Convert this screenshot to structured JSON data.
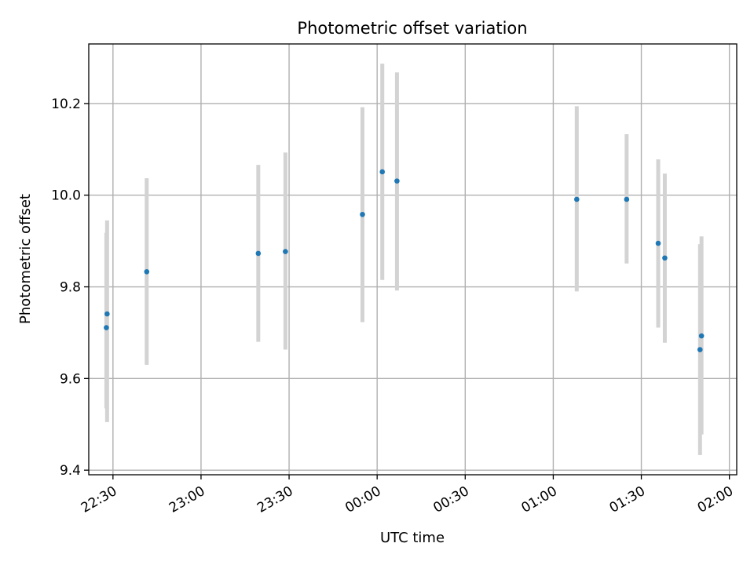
{
  "chart_data": {
    "type": "scatter",
    "title": "Photometric offset variation",
    "xlabel": "UTC time",
    "ylabel": "Photometric offset",
    "xlim": [
      "22:21:45",
      "02:02:30"
    ],
    "ylim": [
      9.39,
      10.33
    ],
    "grid": true,
    "colors": {
      "point": "#1f77b4",
      "error_bar": "#d3d3d3",
      "grid": "#b0b0b0"
    },
    "x_ticks": [
      "22:30",
      "23:00",
      "23:30",
      "00:00",
      "00:30",
      "01:00",
      "01:30",
      "02:00"
    ],
    "y_ticks": [
      "9.4",
      "9.6",
      "9.8",
      "10.0",
      "10.2"
    ],
    "points": [
      {
        "x": "22:27:45",
        "y": 9.711,
        "yerr_low": 9.535,
        "yerr_high": 9.918
      },
      {
        "x": "22:28:00",
        "y": 9.741,
        "yerr_low": 9.505,
        "yerr_high": 9.945
      },
      {
        "x": "22:41:30",
        "y": 9.833,
        "yerr_low": 9.63,
        "yerr_high": 10.037
      },
      {
        "x": "23:19:30",
        "y": 9.873,
        "yerr_low": 9.68,
        "yerr_high": 10.066
      },
      {
        "x": "23:28:45",
        "y": 9.877,
        "yerr_low": 9.663,
        "yerr_high": 10.093
      },
      {
        "x": "23:55:00",
        "y": 9.958,
        "yerr_low": 9.723,
        "yerr_high": 10.192
      },
      {
        "x": "00:01:45",
        "y": 10.051,
        "yerr_low": 9.815,
        "yerr_high": 10.287
      },
      {
        "x": "00:06:45",
        "y": 10.031,
        "yerr_low": 9.792,
        "yerr_high": 10.268
      },
      {
        "x": "01:08:00",
        "y": 9.991,
        "yerr_low": 9.79,
        "yerr_high": 10.194
      },
      {
        "x": "01:25:00",
        "y": 9.991,
        "yerr_low": 9.851,
        "yerr_high": 10.133
      },
      {
        "x": "01:35:45",
        "y": 9.895,
        "yerr_low": 9.711,
        "yerr_high": 10.078
      },
      {
        "x": "01:38:00",
        "y": 9.863,
        "yerr_low": 9.678,
        "yerr_high": 10.047
      },
      {
        "x": "01:50:00",
        "y": 9.663,
        "yerr_low": 9.433,
        "yerr_high": 9.893
      },
      {
        "x": "01:50:30",
        "y": 9.693,
        "yerr_low": 9.478,
        "yerr_high": 9.91
      }
    ]
  }
}
